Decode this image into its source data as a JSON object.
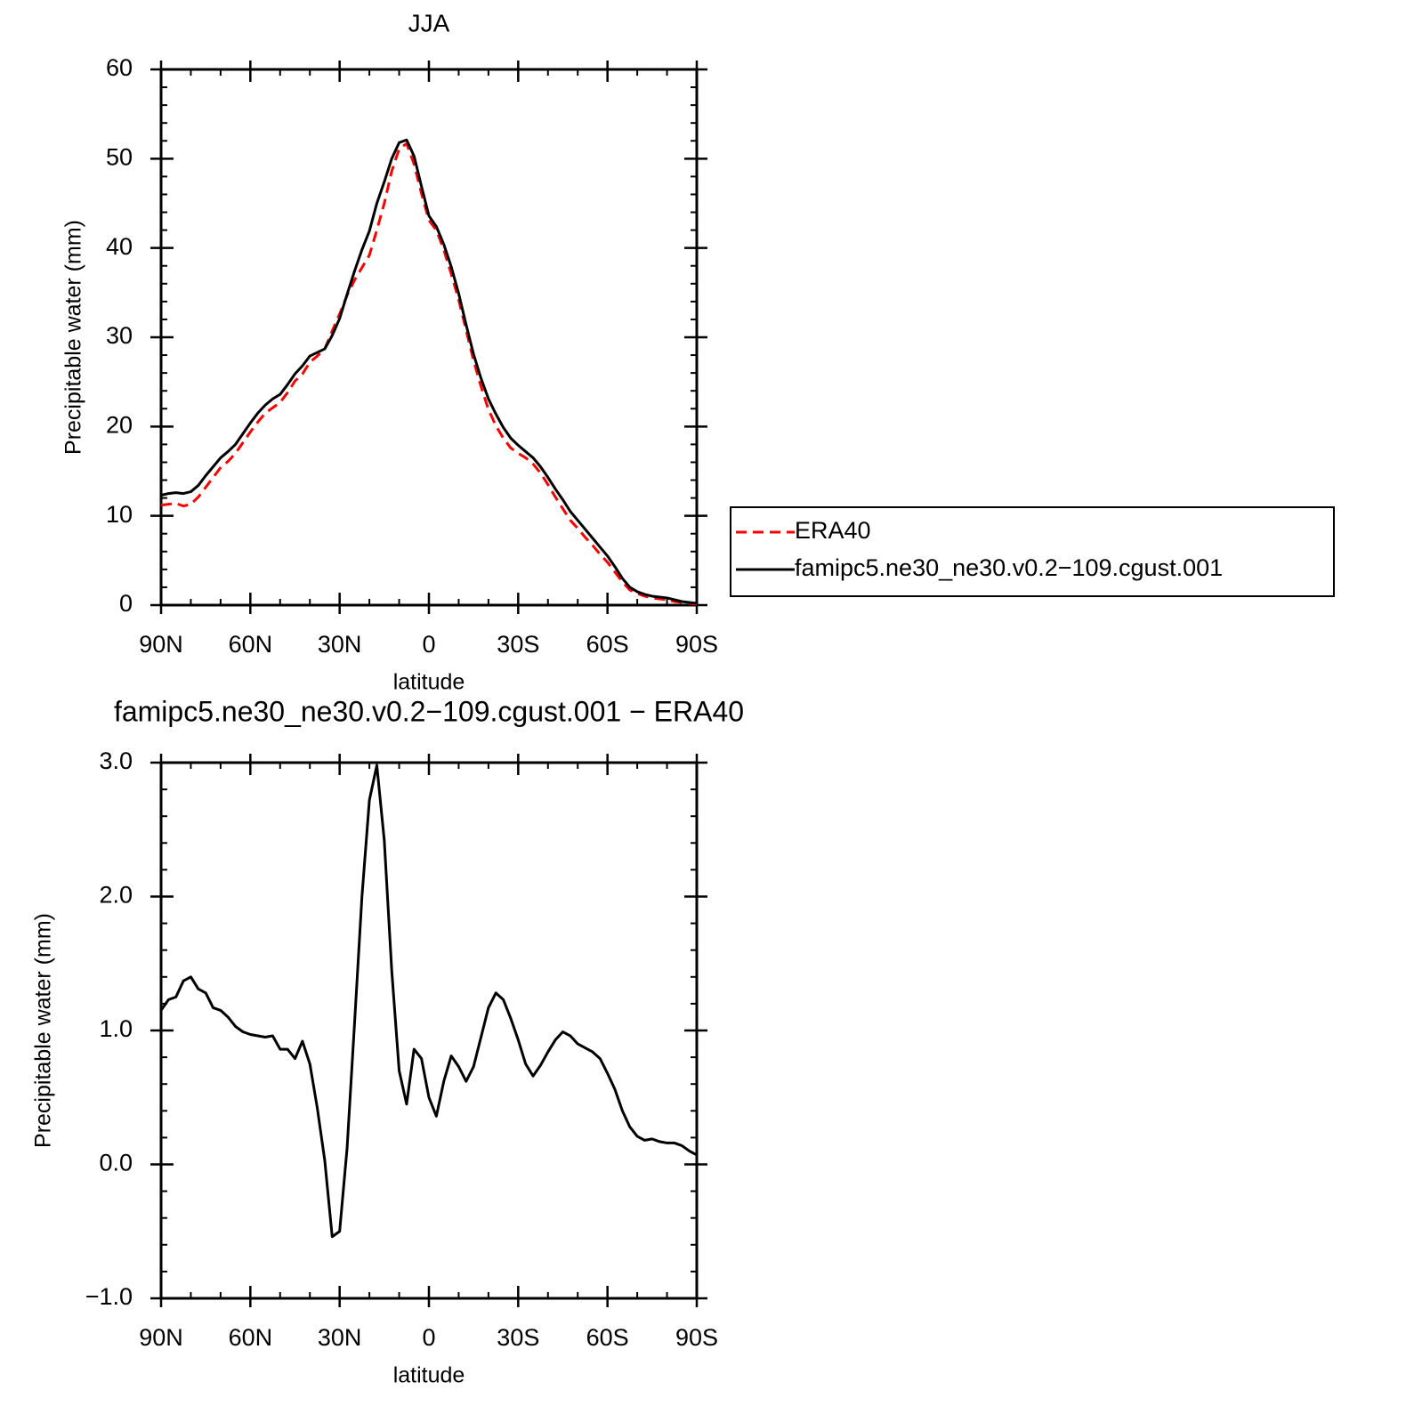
{
  "chart_data": [
    {
      "type": "line",
      "title": "JJA",
      "x_label": "latitude",
      "y_label": "Precipitable water (mm)",
      "x": [
        90,
        87.5,
        85,
        82.5,
        80,
        77.5,
        75,
        72.5,
        70,
        67.5,
        65,
        62.5,
        60,
        57.5,
        55,
        52.5,
        50,
        47.5,
        45,
        42.5,
        40,
        37.5,
        35,
        32.5,
        30,
        27.5,
        25,
        22.5,
        20,
        17.5,
        15,
        12.5,
        10,
        7.5,
        5,
        2.5,
        0,
        -2.5,
        -5,
        -7.5,
        -10,
        -12.5,
        -15,
        -17.5,
        -20,
        -22.5,
        -25,
        -27.5,
        -30,
        -32.5,
        -35,
        -37.5,
        -40,
        -42.5,
        -45,
        -47.5,
        -50,
        -52.5,
        -55,
        -57.5,
        -60,
        -62.5,
        -65,
        -67.5,
        -70,
        -72.5,
        -75,
        -77.5,
        -80,
        -82.5,
        -85,
        -87.5,
        -90
      ],
      "series": [
        {
          "name": "ERA40",
          "color": "#ff0000",
          "line_style": "dashed",
          "values": [
            11.2,
            11.3,
            11.4,
            11.1,
            11.3,
            12.1,
            13.2,
            14.3,
            15.4,
            16.1,
            17.0,
            18.2,
            19.4,
            20.5,
            21.5,
            22.1,
            22.7,
            23.8,
            25.1,
            25.9,
            27.2,
            27.9,
            28.7,
            30.7,
            32.6,
            34.7,
            36.4,
            37.8,
            39.2,
            42.0,
            45.0,
            48.6,
            51.1,
            51.7,
            49.4,
            46.1,
            43.1,
            42.0,
            39.8,
            37.1,
            34.2,
            30.8,
            27.4,
            24.5,
            21.9,
            20.1,
            18.7,
            17.6,
            17.0,
            16.5,
            15.8,
            14.8,
            13.5,
            12.1,
            10.8,
            9.5,
            8.6,
            7.6,
            6.7,
            5.7,
            4.8,
            3.7,
            2.6,
            1.7,
            1.3,
            1.0,
            0.8,
            0.7,
            0.6,
            0.4,
            0.3,
            0.2,
            0.1
          ]
        },
        {
          "name": "famipc5.ne30_ne30.v0.2−109.cgust.001",
          "color": "#000000",
          "line_style": "solid",
          "values": [
            12.3,
            12.5,
            12.6,
            12.5,
            12.7,
            13.4,
            14.5,
            15.5,
            16.5,
            17.2,
            18.0,
            19.2,
            20.4,
            21.5,
            22.4,
            23.1,
            23.6,
            24.7,
            25.9,
            26.8,
            27.9,
            28.3,
            28.7,
            30.2,
            32.1,
            34.8,
            37.4,
            39.8,
            41.9,
            45.0,
            47.4,
            50.0,
            51.8,
            52.1,
            50.3,
            46.9,
            43.6,
            42.4,
            40.4,
            37.9,
            34.9,
            31.4,
            28.1,
            25.4,
            23.1,
            21.4,
            19.9,
            18.7,
            17.9,
            17.2,
            16.5,
            15.5,
            14.3,
            13.0,
            11.8,
            10.5,
            9.5,
            8.5,
            7.5,
            6.5,
            5.5,
            4.3,
            3.0,
            2.0,
            1.5,
            1.2,
            1.0,
            0.9,
            0.8,
            0.6,
            0.4,
            0.3,
            0.2
          ]
        }
      ],
      "xlim": [
        90,
        -90
      ],
      "xticks": [
        {
          "value": 90,
          "label": "90N"
        },
        {
          "value": 60,
          "label": "60N"
        },
        {
          "value": 30,
          "label": "30N"
        },
        0,
        {
          "value": -30,
          "label": "30S"
        },
        {
          "value": -60,
          "label": "60S"
        },
        {
          "value": -90,
          "label": "90S"
        }
      ],
      "ylim": [
        0,
        60
      ],
      "yticks": [
        0,
        10,
        20,
        30,
        40,
        50,
        60
      ],
      "legend": "right"
    },
    {
      "type": "line",
      "title": "famipc5.ne30_ne30.v0.2−109.cgust.001 − ERA40",
      "x_label": "latitude",
      "y_label": "Precipitable water (mm)",
      "x": [
        90,
        87.5,
        85,
        82.5,
        80,
        77.5,
        75,
        72.5,
        70,
        67.5,
        65,
        62.5,
        60,
        57.5,
        55,
        52.5,
        50,
        47.5,
        45,
        42.5,
        40,
        37.5,
        35,
        32.5,
        30,
        27.5,
        25,
        22.5,
        20,
        17.5,
        15,
        12.5,
        10,
        7.5,
        5,
        2.5,
        0,
        -2.5,
        -5,
        -7.5,
        -10,
        -12.5,
        -15,
        -17.5,
        -20,
        -22.5,
        -25,
        -27.5,
        -30,
        -32.5,
        -35,
        -37.5,
        -40,
        -42.5,
        -45,
        -47.5,
        -50,
        -52.5,
        -55,
        -57.5,
        -60,
        -62.5,
        -65,
        -67.5,
        -70,
        -72.5,
        -75,
        -77.5,
        -80,
        -82.5,
        -85,
        -87.5,
        -90
      ],
      "values": [
        1.15,
        1.23,
        1.25,
        1.37,
        1.4,
        1.31,
        1.28,
        1.17,
        1.15,
        1.1,
        1.03,
        0.99,
        0.97,
        0.96,
        0.95,
        0.96,
        0.86,
        0.86,
        0.79,
        0.92,
        0.75,
        0.42,
        0.03,
        -0.54,
        -0.5,
        0.12,
        1.05,
        2.0,
        2.72,
        2.98,
        2.42,
        1.45,
        0.7,
        0.45,
        0.86,
        0.79,
        0.5,
        0.36,
        0.62,
        0.81,
        0.73,
        0.62,
        0.73,
        0.95,
        1.17,
        1.28,
        1.23,
        1.09,
        0.93,
        0.75,
        0.66,
        0.74,
        0.84,
        0.93,
        0.99,
        0.96,
        0.9,
        0.87,
        0.84,
        0.79,
        0.68,
        0.56,
        0.4,
        0.28,
        0.21,
        0.18,
        0.19,
        0.17,
        0.16,
        0.16,
        0.14,
        0.1,
        0.07
      ],
      "color": "#000000",
      "xlim": [
        90,
        -90
      ],
      "xticks": [
        {
          "value": 90,
          "label": "90N"
        },
        {
          "value": 60,
          "label": "60N"
        },
        {
          "value": 30,
          "label": "30N"
        },
        0,
        {
          "value": -30,
          "label": "30S"
        },
        {
          "value": -60,
          "label": "60S"
        },
        {
          "value": -90,
          "label": "90S"
        }
      ],
      "ylim": [
        -1,
        3
      ],
      "yticks": [
        {
          "value": -1,
          "label": "−1.0"
        },
        {
          "value": 0,
          "label": "0.0"
        },
        {
          "value": 1,
          "label": "1.0"
        },
        {
          "value": 2,
          "label": "2.0"
        },
        {
          "value": 3,
          "label": "3.0"
        }
      ]
    }
  ]
}
